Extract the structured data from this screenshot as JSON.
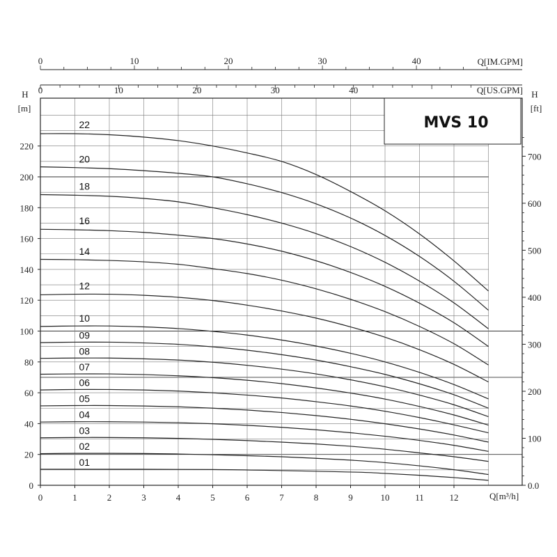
{
  "chart_data": {
    "type": "line",
    "title": "MVS 10",
    "xlabel": "Q[m³/h]",
    "x_ticks": [
      "0",
      "1",
      "2",
      "3",
      "4",
      "5",
      "6",
      "7",
      "8",
      "9",
      "10",
      "11",
      "12"
    ],
    "xlim": [
      0,
      13
    ],
    "top_axis_imgpm": {
      "label": "Q[IM.GPM]",
      "ticks": [
        "0",
        "10",
        "20",
        "30",
        "40"
      ]
    },
    "top_axis_usgpm": {
      "label": "Q[US.GPM]",
      "ticks": [
        "0",
        "10",
        "20",
        "30",
        "40"
      ]
    },
    "ylabel_left": "H",
    "ylabel_left_unit": "[m]",
    "y_ticks_left": [
      "0",
      "20",
      "40",
      "60",
      "80",
      "100",
      "120",
      "140",
      "160",
      "180",
      "200",
      "220"
    ],
    "ylim": [
      0,
      240
    ],
    "ylabel_right": "H",
    "ylabel_right_unit": "[ft]",
    "y_ticks_right": [
      "0.0",
      "100",
      "200",
      "300",
      "400",
      "500",
      "600",
      "700"
    ],
    "grid": true,
    "series": [
      {
        "name": "01",
        "x": [
          0,
          5,
          9,
          10,
          11,
          12,
          13
        ],
        "y": [
          10.4,
          10.2,
          8.6,
          7.7,
          6.5,
          5.0,
          3.2
        ]
      },
      {
        "name": "02",
        "x": [
          0,
          1,
          2,
          3,
          4,
          5,
          6,
          7,
          8,
          9,
          10,
          11,
          12,
          13
        ],
        "y": [
          20.5,
          20.7,
          20.7,
          20.6,
          20.3,
          19.8,
          19.2,
          18.5,
          17.5,
          16.3,
          14.7,
          12.6,
          10.1,
          7.0
        ]
      },
      {
        "name": "03",
        "x": [
          0,
          1,
          2,
          3,
          4,
          5,
          6,
          7,
          8,
          9,
          10,
          11,
          12,
          13
        ],
        "y": [
          30.8,
          31.0,
          31.0,
          30.8,
          30.4,
          29.8,
          29.0,
          28.0,
          26.8,
          25.3,
          23.4,
          21.0,
          18.5,
          15.5
        ]
      },
      {
        "name": "04",
        "x": [
          0,
          1,
          2,
          3,
          4,
          5,
          6,
          7,
          8,
          9,
          10,
          11,
          12,
          13
        ],
        "y": [
          41.0,
          41.2,
          41.2,
          41.0,
          40.6,
          39.9,
          38.9,
          37.6,
          36.0,
          34.1,
          31.8,
          29.1,
          25.9,
          22.0
        ]
      },
      {
        "name": "05",
        "x": [
          0,
          1,
          2,
          3,
          4,
          5,
          6,
          7,
          8,
          9,
          10,
          11,
          12,
          13
        ],
        "y": [
          51.5,
          51.7,
          51.7,
          51.4,
          50.9,
          50.0,
          48.8,
          47.2,
          45.2,
          42.8,
          39.9,
          36.5,
          32.6,
          28.0
        ]
      },
      {
        "name": "06",
        "x": [
          0,
          1,
          2,
          3,
          4,
          5,
          6,
          7,
          8,
          9,
          10,
          11,
          12,
          13
        ],
        "y": [
          61.8,
          62.1,
          62.1,
          61.8,
          61.1,
          60.0,
          58.5,
          56.6,
          54.2,
          51.4,
          48.0,
          43.9,
          39.2,
          34.0
        ]
      },
      {
        "name": "07",
        "x": [
          0,
          1,
          2,
          3,
          4,
          5,
          6,
          7,
          8,
          9,
          10,
          11,
          12,
          13
        ],
        "y": [
          72.0,
          72.2,
          72.2,
          71.8,
          71.0,
          69.8,
          68.1,
          65.9,
          63.1,
          59.8,
          55.9,
          51.1,
          45.6,
          39.0
        ]
      },
      {
        "name": "08",
        "x": [
          0,
          1,
          2,
          3,
          4,
          5,
          6,
          7,
          8,
          9,
          10,
          11,
          12,
          13
        ],
        "y": [
          82.3,
          82.5,
          82.5,
          82.0,
          81.2,
          79.8,
          77.8,
          75.3,
          72.2,
          68.4,
          63.9,
          58.5,
          52.2,
          44.5
        ]
      },
      {
        "name": "09",
        "x": [
          0,
          1,
          2,
          3,
          4,
          5,
          6,
          7,
          8,
          9,
          10,
          11,
          12,
          13
        ],
        "y": [
          92.5,
          92.8,
          92.8,
          92.3,
          91.4,
          89.8,
          87.6,
          84.7,
          81.2,
          76.9,
          71.9,
          65.8,
          58.7,
          50.0
        ]
      },
      {
        "name": "10",
        "x": [
          0,
          1,
          2,
          3,
          4,
          5,
          6,
          7,
          8,
          9,
          10,
          11,
          12,
          13
        ],
        "y": [
          103.0,
          103.3,
          103.3,
          102.7,
          101.6,
          99.8,
          97.4,
          94.2,
          90.3,
          85.6,
          80.0,
          73.2,
          65.3,
          56.0
        ]
      },
      {
        "name": "12",
        "x": [
          0,
          1,
          2,
          3,
          4,
          5,
          6,
          7,
          8,
          9,
          10,
          11,
          12,
          13
        ],
        "y": [
          123.5,
          123.9,
          123.9,
          123.2,
          121.9,
          119.8,
          116.8,
          113.0,
          108.4,
          102.7,
          96.0,
          87.9,
          78.4,
          67.0
        ]
      },
      {
        "name": "14",
        "x": [
          0,
          1,
          2,
          3,
          4,
          5,
          6,
          7,
          8,
          9,
          10,
          11,
          12,
          13
        ],
        "y": [
          146.5,
          146.3,
          145.8,
          144.9,
          143.3,
          140.5,
          137.3,
          133.0,
          127.4,
          120.6,
          112.6,
          103.0,
          91.8,
          78.0
        ]
      },
      {
        "name": "16",
        "x": [
          0,
          1,
          2,
          3,
          4,
          5,
          6,
          7,
          8,
          9,
          10,
          11,
          12,
          13
        ],
        "y": [
          166.0,
          165.7,
          165.1,
          164.0,
          162.2,
          160.0,
          156.5,
          151.8,
          145.6,
          138.0,
          129.0,
          118.1,
          105.4,
          90.0
        ]
      },
      {
        "name": "18",
        "x": [
          0,
          1,
          2,
          3,
          4,
          5,
          6,
          7,
          8,
          9,
          10,
          11,
          12,
          13
        ],
        "y": [
          188.5,
          188.1,
          187.4,
          186.0,
          183.8,
          180.0,
          175.5,
          170.0,
          163.2,
          154.8,
          144.6,
          132.4,
          118.3,
          101.5
        ]
      },
      {
        "name": "20",
        "x": [
          0,
          1,
          2,
          3,
          4,
          5,
          6,
          7,
          8,
          9,
          10,
          11,
          12,
          13
        ],
        "y": [
          206.5,
          206.0,
          205.3,
          204.0,
          202.3,
          200.0,
          195.5,
          189.8,
          182.5,
          173.3,
          162.0,
          148.4,
          132.3,
          113.5
        ]
      },
      {
        "name": "22",
        "x": [
          0,
          1,
          2,
          3,
          4,
          5,
          6,
          7,
          8,
          9,
          10,
          11,
          12,
          13
        ],
        "y": [
          228.0,
          228.0,
          227.3,
          225.8,
          223.5,
          220.0,
          215.5,
          210.0,
          201.5,
          190.5,
          178.0,
          163.0,
          145.5,
          126.0
        ]
      }
    ]
  }
}
